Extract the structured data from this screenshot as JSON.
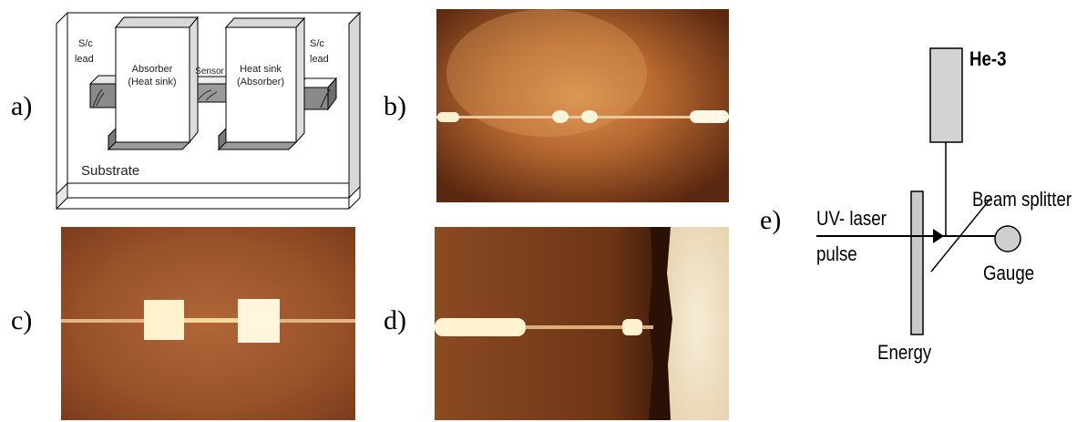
{
  "panel_labels": {
    "a": "a)",
    "b": "b)",
    "c": "c)",
    "d": "d)",
    "e": "e)"
  },
  "schematic": {
    "left_lead": [
      "S/c",
      "lead"
    ],
    "right_lead": [
      "S/c",
      "lead"
    ],
    "absorber": [
      "Absorber",
      "(Heat sink)"
    ],
    "sensor": "Sensor",
    "heat_sink": [
      "Heat sink",
      "(Absorber)"
    ],
    "substrate": "Substrate"
  },
  "setup": {
    "he3": "He-3",
    "beam_splitter": "Beam splitter",
    "laser": [
      "UV- laser",
      "pulse"
    ],
    "gauge": "Gauge",
    "energy": "Energy"
  },
  "colors": {
    "photo_dark": "#5e2a10",
    "photo_mid": "#a9582a",
    "photo_bright": "#d18446",
    "film": "#fff6d8",
    "box_face": "#ffffff",
    "box_side": "#c8c8c8",
    "box_top": "#a8a8a8",
    "he3_fill": "#d3d3d3",
    "gauge_fill": "#cfcfcf",
    "energy_fill": "#c8c8c8"
  }
}
